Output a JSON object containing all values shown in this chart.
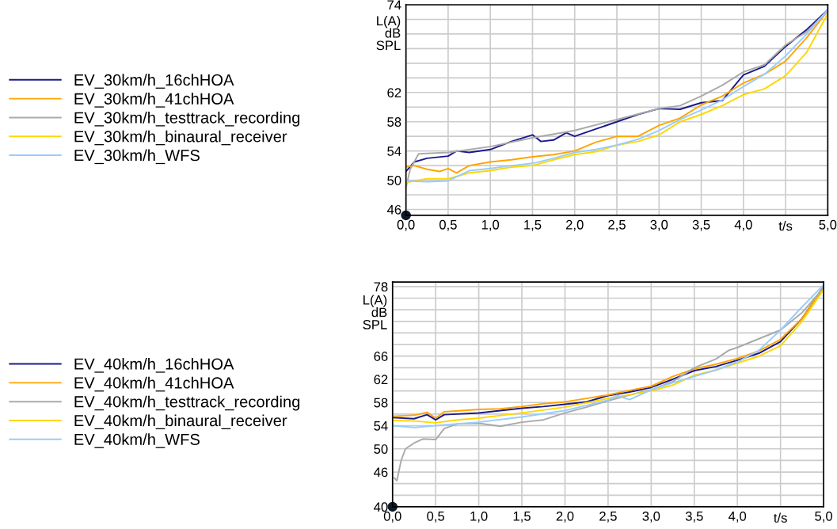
{
  "chart_data": [
    {
      "type": "line",
      "xlabel": "t/s",
      "ylabel": "L(A)\ndB\nSPL",
      "xlim": [
        0,
        5
      ],
      "ylim": [
        45.2,
        74
      ],
      "xticks": [
        {
          "value": 0,
          "label": "0,0"
        },
        {
          "value": 0.5,
          "label": "0,5"
        },
        {
          "value": 1,
          "label": "1,0"
        },
        {
          "value": 1.5,
          "label": "1,5"
        },
        {
          "value": 2,
          "label": "2,0"
        },
        {
          "value": 2.5,
          "label": "2,5"
        },
        {
          "value": 3,
          "label": "3,0"
        },
        {
          "value": 3.5,
          "label": "3,5"
        },
        {
          "value": 4,
          "label": "4,0"
        },
        {
          "value": 4.5,
          "label": null
        },
        {
          "value": 5,
          "label": "5,0"
        }
      ],
      "yticks": [
        46,
        {
          "value": 48,
          "label": null
        },
        50,
        {
          "value": 52,
          "label": null
        },
        54,
        {
          "value": 56,
          "label": null
        },
        58,
        {
          "value": 60,
          "label": null
        },
        62,
        {
          "value": 64,
          "label": null
        },
        {
          "value": 66,
          "label": null
        },
        {
          "value": 68,
          "label": null
        },
        {
          "value": 70,
          "label": null
        },
        {
          "value": 72,
          "label": null
        },
        74
      ],
      "grid": true,
      "legend": "left",
      "line_style": "solid",
      "marker": "none",
      "series": [
        {
          "name": "EV_30km/h_16chHOA",
          "color": "#1a1a8c",
          "x": [
            0,
            0.1,
            0.25,
            0.5,
            0.6,
            0.75,
            1,
            1.25,
            1.5,
            1.6,
            1.75,
            1.9,
            2,
            2.25,
            2.5,
            2.75,
            3,
            3.25,
            3.5,
            3.75,
            4,
            4.25,
            4.5,
            4.75,
            5
          ],
          "values": [
            51.2,
            52.5,
            53,
            53.3,
            54,
            53.8,
            54.2,
            55.3,
            56.2,
            55.3,
            55.5,
            56.5,
            56,
            57,
            58,
            59,
            59.8,
            59.7,
            60.6,
            60.9,
            64.4,
            65.6,
            68.3,
            70.6,
            73.3
          ]
        },
        {
          "name": "EV_30km/h_41chHOA",
          "color": "#ffa500",
          "x": [
            0,
            0.1,
            0.25,
            0.4,
            0.5,
            0.6,
            0.75,
            1,
            1.25,
            1.5,
            1.75,
            2,
            2.25,
            2.5,
            2.75,
            3,
            3.25,
            3.5,
            3.75,
            4,
            4.25,
            4.5,
            4.75,
            5
          ],
          "values": [
            51.8,
            52,
            51.5,
            51.2,
            51.6,
            51,
            52,
            52.5,
            52.8,
            53.2,
            53.5,
            54,
            55.2,
            56,
            56,
            57.5,
            58.5,
            60.3,
            61.5,
            63.3,
            64.5,
            66.3,
            69.5,
            73.2
          ]
        },
        {
          "name": "EV_30km/h_testtrack_recording",
          "color": "#aaaaaa",
          "x": [
            0,
            0.05,
            0.15,
            0.5,
            1,
            1.5,
            2,
            2.5,
            3,
            3.25,
            3.5,
            3.75,
            4,
            4.25,
            4.5,
            4.75,
            5
          ],
          "values": [
            49,
            51.5,
            53.6,
            53.8,
            54.6,
            55.8,
            56.8,
            58.3,
            59.8,
            60.2,
            61.5,
            63,
            64.8,
            65.8,
            68.5,
            70.3,
            73.2
          ]
        },
        {
          "name": "EV_30km/h_binaural_receiver",
          "color": "#ffd700",
          "x": [
            0,
            0.25,
            0.5,
            0.75,
            1,
            1.25,
            1.5,
            1.75,
            2,
            2.25,
            2.5,
            2.75,
            3,
            3.25,
            3.5,
            3.75,
            4,
            4.25,
            4.5,
            4.75,
            5
          ],
          "values": [
            49.7,
            50.2,
            50.2,
            51,
            51.3,
            51.8,
            52,
            52.8,
            53.5,
            53.9,
            54.8,
            55.3,
            56.2,
            58,
            59,
            60.2,
            61.7,
            62.5,
            64.3,
            67.5,
            72.8
          ]
        },
        {
          "name": "EV_30km/h_WFS",
          "color": "#99ccff",
          "x": [
            0,
            0.25,
            0.5,
            0.75,
            1,
            1.25,
            1.5,
            1.75,
            2,
            2.25,
            2.5,
            2.75,
            3,
            3.25,
            3.5,
            3.75,
            4,
            4.25,
            4.5,
            4.75,
            5
          ],
          "values": [
            49.9,
            49.8,
            49.9,
            51.3,
            51.6,
            52,
            52.3,
            53,
            53.8,
            54.2,
            54.8,
            55.6,
            56.8,
            58.3,
            59.6,
            61,
            62.8,
            64.5,
            67,
            70,
            73.3
          ]
        }
      ]
    },
    {
      "type": "line",
      "xlabel": "t/s",
      "ylabel": "L(A)\ndB\nSPL",
      "xlim": [
        0,
        5
      ],
      "ylim": [
        40,
        78.8
      ],
      "xticks": [
        {
          "value": 0,
          "label": "0,0"
        },
        {
          "value": 0.5,
          "label": "0,5"
        },
        {
          "value": 1,
          "label": "1,0"
        },
        {
          "value": 1.5,
          "label": "1,5"
        },
        {
          "value": 2,
          "label": "2,0"
        },
        {
          "value": 2.5,
          "label": "2,5"
        },
        {
          "value": 3,
          "label": "3,0"
        },
        {
          "value": 3.5,
          "label": "3,5"
        },
        {
          "value": 4,
          "label": "4,0"
        },
        {
          "value": 4.5,
          "label": null
        },
        {
          "value": 5,
          "label": "5,0"
        }
      ],
      "yticks": [
        40,
        {
          "value": 42,
          "label": null
        },
        {
          "value": 44,
          "label": null
        },
        46,
        {
          "value": 48,
          "label": null
        },
        50,
        {
          "value": 52,
          "label": null
        },
        54,
        {
          "value": 56,
          "label": null
        },
        58,
        {
          "value": 60,
          "label": null
        },
        62,
        {
          "value": 64,
          "label": null
        },
        66,
        {
          "value": 68,
          "label": null
        },
        {
          "value": 70,
          "label": null
        },
        {
          "value": 72,
          "label": null
        },
        {
          "value": 74,
          "label": null
        },
        {
          "value": 76,
          "label": null
        },
        78
      ],
      "grid": true,
      "legend": "left",
      "line_style": "solid",
      "marker": "none",
      "series": [
        {
          "name": "EV_40km/h_16chHOA",
          "color": "#1a1a8c",
          "x": [
            0,
            0.25,
            0.4,
            0.5,
            0.6,
            1,
            1.25,
            1.5,
            1.75,
            2,
            2.25,
            2.5,
            2.75,
            3,
            3.25,
            3.5,
            3.75,
            4,
            4.25,
            4.5,
            4.75,
            5
          ],
          "values": [
            55.4,
            55.2,
            55.9,
            55,
            55.9,
            56.2,
            56.6,
            57,
            57.3,
            57.7,
            58.1,
            59.2,
            59.8,
            60.6,
            62,
            63.5,
            64.2,
            65.3,
            66.5,
            68.5,
            72.5,
            78
          ]
        },
        {
          "name": "EV_40km/h_41chHOA",
          "color": "#ffa500",
          "x": [
            0,
            0.25,
            0.4,
            0.5,
            0.6,
            1,
            1.25,
            1.5,
            1.75,
            2,
            2.25,
            2.5,
            2.75,
            3,
            3.25,
            3.5,
            3.75,
            4,
            4.25,
            4.5,
            4.75,
            5
          ],
          "values": [
            55.6,
            55.8,
            56.3,
            55.3,
            56.4,
            56.8,
            56.9,
            57.3,
            57.8,
            58.1,
            58.7,
            59.3,
            60.1,
            60.8,
            62.5,
            63.8,
            64.6,
            65.6,
            66.9,
            68.9,
            72.5,
            78
          ]
        },
        {
          "name": "EV_40km/h_testtrack_recording",
          "color": "#aaaaaa",
          "x": [
            0.02,
            0.05,
            0.1,
            0.15,
            0.25,
            0.35,
            0.5,
            0.6,
            0.75,
            1,
            1.25,
            1.5,
            1.75,
            2,
            2.25,
            2.5,
            2.75,
            3,
            3.25,
            3.5,
            3.75,
            3.9,
            4,
            4.25,
            4.5,
            4.75,
            5
          ],
          "values": [
            45,
            44.5,
            48,
            50,
            51,
            51.7,
            51.6,
            53.5,
            54.3,
            54.4,
            53.9,
            54.6,
            55,
            56.2,
            57.2,
            58.3,
            59.3,
            60.2,
            61.6,
            64,
            65.5,
            67,
            67.5,
            69,
            70.5,
            73.5,
            77.8
          ]
        },
        {
          "name": "EV_40km/h_binaural_receiver",
          "color": "#ffd700",
          "x": [
            0,
            0.25,
            0.5,
            0.75,
            1,
            1.5,
            2,
            2.5,
            3,
            3.25,
            3.5,
            3.75,
            4,
            4.25,
            4.5,
            4.75,
            5
          ],
          "values": [
            54.9,
            54.8,
            54.5,
            55,
            55.3,
            56.2,
            57.2,
            58.7,
            60,
            61,
            62.7,
            63.6,
            64.8,
            66,
            67.8,
            72,
            77.5
          ]
        },
        {
          "name": "EV_40km/h_WFS",
          "color": "#99ccff",
          "x": [
            0,
            0.25,
            0.5,
            0.75,
            1,
            1.5,
            2,
            2.25,
            2.5,
            2.6,
            2.75,
            3,
            3.25,
            3.5,
            3.75,
            4,
            4.25,
            4.5,
            4.75,
            5
          ],
          "values": [
            54,
            53.7,
            54,
            54.3,
            54.6,
            55.5,
            56.6,
            57.5,
            58.4,
            59.2,
            58.5,
            60.2,
            61.4,
            62.5,
            63.6,
            65,
            67,
            70.5,
            74.5,
            78.3
          ]
        }
      ]
    }
  ]
}
